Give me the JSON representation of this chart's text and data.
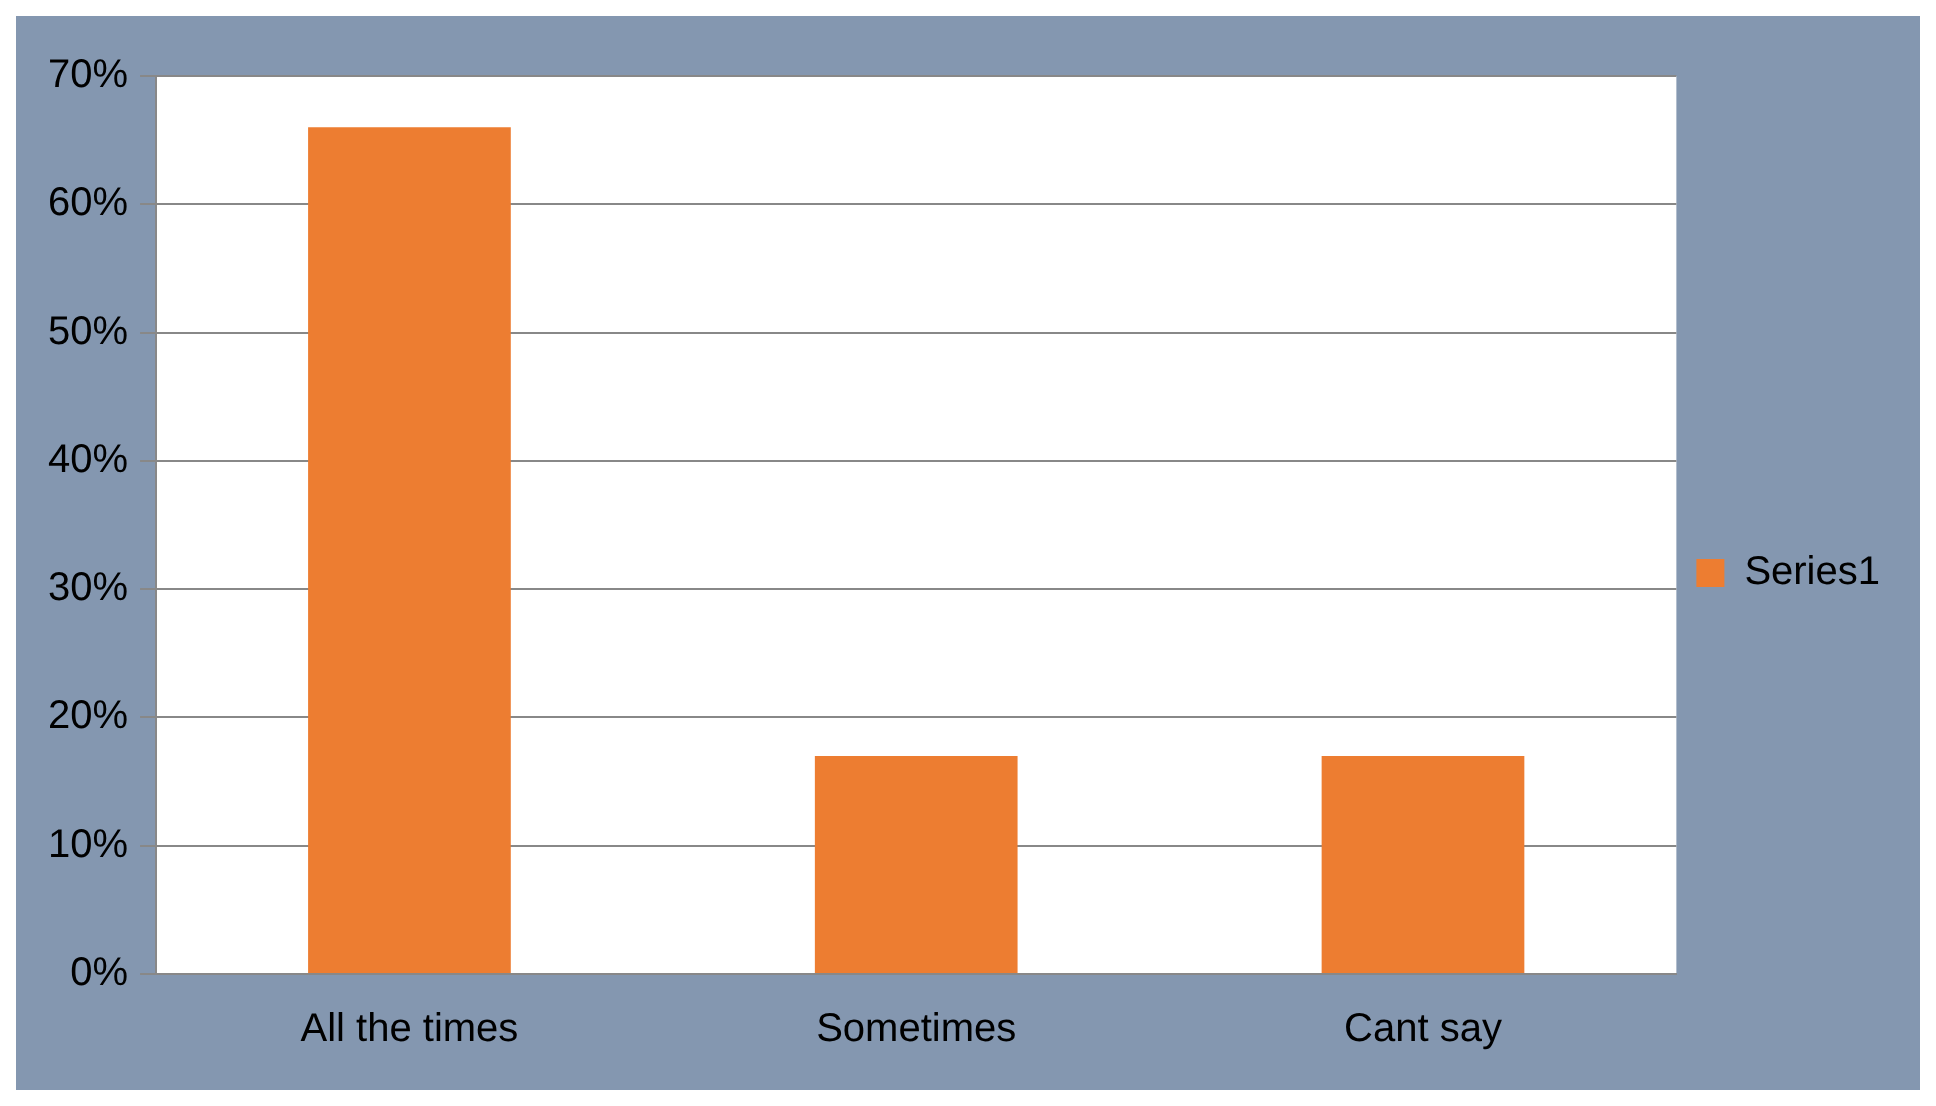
{
  "chart_data": {
    "type": "bar",
    "categories": [
      "All the times",
      "Sometimes",
      "Cant say"
    ],
    "series": [
      {
        "name": "Series1",
        "color": "#ed7d31",
        "values": [
          66,
          17,
          17
        ]
      }
    ],
    "ylim": [
      0,
      70
    ],
    "yticks": [
      {
        "value": 0,
        "label": "0%"
      },
      {
        "value": 10,
        "label": "10%"
      },
      {
        "value": 20,
        "label": "20%"
      },
      {
        "value": 30,
        "label": "30%"
      },
      {
        "value": 40,
        "label": "40%"
      },
      {
        "value": 50,
        "label": "50%"
      },
      {
        "value": 60,
        "label": "60%"
      },
      {
        "value": 70,
        "label": "70%"
      }
    ],
    "grid": "y",
    "legend": "right"
  }
}
